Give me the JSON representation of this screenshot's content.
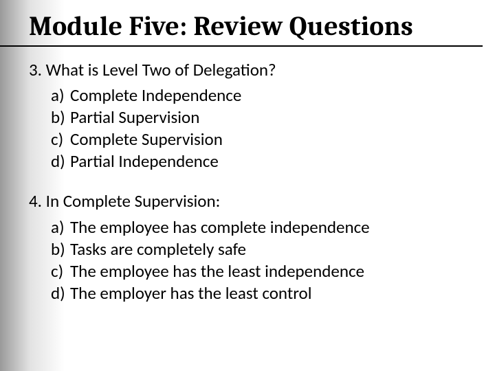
{
  "colors": {
    "text": "#000000",
    "background": "#ffffff",
    "gradient_left": "#9a9a9a",
    "underline": "#000000"
  },
  "typography": {
    "title_font": "Cambria",
    "body_font": "Calibri",
    "title_size_pt": 30,
    "body_size_pt": 19,
    "title_weight": "700",
    "body_weight": "400"
  },
  "title": "Module Five: Review Questions",
  "questions": [
    {
      "number": "3.",
      "stem": "What is Level Two of Delegation?",
      "options": [
        {
          "label": "a)",
          "text": "Complete Independence"
        },
        {
          "label": "b)",
          "text": "Partial Supervision"
        },
        {
          "label": "c)",
          "text": "Complete Supervision"
        },
        {
          "label": "d)",
          "text": "Partial Independence"
        }
      ]
    },
    {
      "number": "4.",
      "stem": "In Complete Supervision:",
      "options": [
        {
          "label": "a)",
          "text": "The employee has complete independence"
        },
        {
          "label": "b)",
          "text": "Tasks are completely safe"
        },
        {
          "label": "c)",
          "text": "The employee has the least independence"
        },
        {
          "label": "d)",
          "text": "The employer  has the least control"
        }
      ]
    }
  ]
}
